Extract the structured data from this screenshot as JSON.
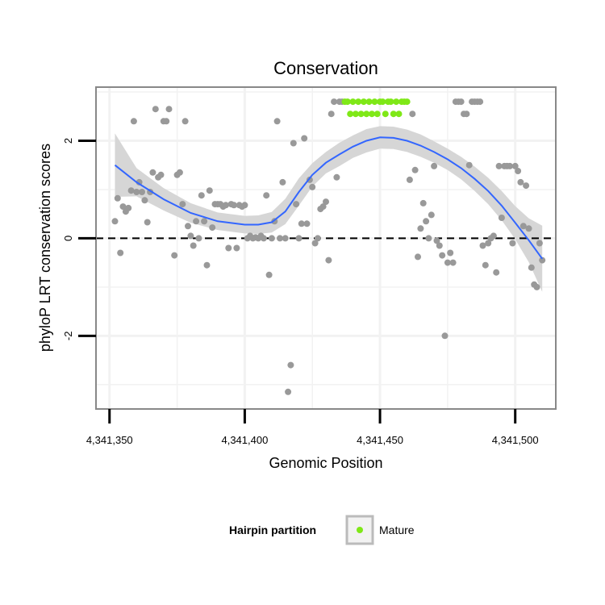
{
  "chart_data": {
    "type": "scatter",
    "title": "Conservation",
    "xlabel": "Genomic Position",
    "ylabel": "phyloP LRT conservation scores",
    "xlim": [
      4341345,
      4341515
    ],
    "ylim": [
      -3.5,
      3.1
    ],
    "x_ticks": [
      4341350,
      4341400,
      4341450,
      4341500
    ],
    "x_tick_labels": [
      "4,341,350",
      "4,341,400",
      "4,341,450",
      "4,341,500"
    ],
    "y_ticks": [
      -2,
      0,
      2
    ],
    "y_tick_labels": [
      "-2",
      "0",
      "2"
    ],
    "reference_line": {
      "y": 0,
      "style": "dashed"
    },
    "grid": true,
    "legend": {
      "title": "Hairpin partition",
      "position": "bottom",
      "entries": [
        {
          "label": "Mature",
          "color": "#7FE817"
        }
      ]
    },
    "colors": {
      "other": "#999999",
      "mature": "#7FE817",
      "smooth_line": "#3366FF",
      "ribbon": "#D6D6D6",
      "panel_border": "#888888",
      "grid": "#F2F2F2"
    },
    "series": [
      {
        "name": "",
        "color": "#999999",
        "points": [
          [
            4341352,
            0.35
          ],
          [
            4341353,
            0.82
          ],
          [
            4341354,
            -0.3
          ],
          [
            4341355,
            0.65
          ],
          [
            4341356,
            0.55
          ],
          [
            4341357,
            0.62
          ],
          [
            4341358,
            0.98
          ],
          [
            4341359,
            2.4
          ],
          [
            4341360,
            0.95
          ],
          [
            4341361,
            1.15
          ],
          [
            4341362,
            0.95
          ],
          [
            4341363,
            0.78
          ],
          [
            4341364,
            0.33
          ],
          [
            4341365,
            0.95
          ],
          [
            4341366,
            1.35
          ],
          [
            4341367,
            2.65
          ],
          [
            4341368,
            1.25
          ],
          [
            4341369,
            1.3
          ],
          [
            4341370,
            2.4
          ],
          [
            4341371,
            2.4
          ],
          [
            4341372,
            2.65
          ],
          [
            4341374,
            -0.35
          ],
          [
            4341375,
            1.3
          ],
          [
            4341376,
            1.35
          ],
          [
            4341377,
            0.7
          ],
          [
            4341378,
            2.4
          ],
          [
            4341379,
            0.25
          ],
          [
            4341380,
            0.05
          ],
          [
            4341381,
            -0.15
          ],
          [
            4341382,
            0.35
          ],
          [
            4341383,
            0.0
          ],
          [
            4341384,
            0.88
          ],
          [
            4341385,
            0.35
          ],
          [
            4341386,
            -0.55
          ],
          [
            4341387,
            0.98
          ],
          [
            4341388,
            0.22
          ],
          [
            4341389,
            0.7
          ],
          [
            4341390,
            0.7
          ],
          [
            4341391,
            0.7
          ],
          [
            4341392,
            0.65
          ],
          [
            4341393,
            0.68
          ],
          [
            4341394,
            -0.2
          ],
          [
            4341395,
            0.7
          ],
          [
            4341396,
            0.68
          ],
          [
            4341397,
            -0.2
          ],
          [
            4341398,
            0.68
          ],
          [
            4341399,
            0.65
          ],
          [
            4341400,
            0.68
          ],
          [
            4341401,
            0.0
          ],
          [
            4341402,
            0.05
          ],
          [
            4341403,
            0.0
          ],
          [
            4341404,
            0.02
          ],
          [
            4341405,
            0.0
          ],
          [
            4341406,
            0.05
          ],
          [
            4341407,
            0.0
          ],
          [
            4341408,
            0.88
          ],
          [
            4341409,
            -0.75
          ],
          [
            4341410,
            0.0
          ],
          [
            4341411,
            0.35
          ],
          [
            4341412,
            2.4
          ],
          [
            4341413,
            0.0
          ],
          [
            4341414,
            1.15
          ],
          [
            4341415,
            0.0
          ],
          [
            4341416,
            -3.15
          ],
          [
            4341417,
            -2.6
          ],
          [
            4341418,
            1.95
          ],
          [
            4341419,
            0.7
          ],
          [
            4341420,
            0.0
          ],
          [
            4341421,
            0.3
          ],
          [
            4341422,
            2.05
          ],
          [
            4341423,
            0.3
          ],
          [
            4341424,
            1.2
          ],
          [
            4341425,
            1.05
          ],
          [
            4341426,
            -0.1
          ],
          [
            4341427,
            0.0
          ],
          [
            4341428,
            0.6
          ],
          [
            4341429,
            0.65
          ],
          [
            4341430,
            0.75
          ],
          [
            4341431,
            -0.45
          ],
          [
            4341432,
            2.55
          ],
          [
            4341433,
            2.8
          ],
          [
            4341434,
            1.25
          ],
          [
            4341435,
            2.8
          ],
          [
            4341436,
            2.8
          ],
          [
            4341461,
            1.2
          ],
          [
            4341462,
            2.55
          ],
          [
            4341463,
            1.4
          ],
          [
            4341464,
            -0.38
          ],
          [
            4341465,
            0.2
          ],
          [
            4341466,
            0.72
          ],
          [
            4341467,
            0.35
          ],
          [
            4341468,
            0.0
          ],
          [
            4341469,
            0.48
          ],
          [
            4341470,
            1.48
          ],
          [
            4341471,
            -0.05
          ],
          [
            4341472,
            -0.15
          ],
          [
            4341473,
            -0.35
          ],
          [
            4341474,
            -2.0
          ],
          [
            4341475,
            -0.5
          ],
          [
            4341476,
            -0.3
          ],
          [
            4341477,
            -0.5
          ],
          [
            4341478,
            2.8
          ],
          [
            4341479,
            2.8
          ],
          [
            4341480,
            2.8
          ],
          [
            4341481,
            2.55
          ],
          [
            4341482,
            2.55
          ],
          [
            4341483,
            1.5
          ],
          [
            4341484,
            2.8
          ],
          [
            4341485,
            2.8
          ],
          [
            4341486,
            2.8
          ],
          [
            4341487,
            2.8
          ],
          [
            4341488,
            -0.15
          ],
          [
            4341489,
            -0.55
          ],
          [
            4341490,
            -0.1
          ],
          [
            4341491,
            0.0
          ],
          [
            4341492,
            0.05
          ],
          [
            4341493,
            -0.7
          ],
          [
            4341494,
            1.48
          ],
          [
            4341495,
            0.42
          ],
          [
            4341496,
            1.48
          ],
          [
            4341497,
            1.48
          ],
          [
            4341498,
            1.48
          ],
          [
            4341499,
            -0.1
          ],
          [
            4341500,
            1.48
          ],
          [
            4341501,
            1.38
          ],
          [
            4341502,
            1.15
          ],
          [
            4341503,
            0.25
          ],
          [
            4341504,
            1.08
          ],
          [
            4341505,
            0.2
          ],
          [
            4341506,
            -0.6
          ],
          [
            4341507,
            -0.95
          ],
          [
            4341508,
            -1.0
          ],
          [
            4341509,
            -0.1
          ],
          [
            4341510,
            -0.45
          ]
        ]
      },
      {
        "name": "Mature",
        "color": "#7FE817",
        "points": [
          [
            4341437,
            2.8
          ],
          [
            4341438,
            2.8
          ],
          [
            4341439,
            2.55
          ],
          [
            4341440,
            2.8
          ],
          [
            4341441,
            2.55
          ],
          [
            4341442,
            2.8
          ],
          [
            4341443,
            2.55
          ],
          [
            4341444,
            2.8
          ],
          [
            4341445,
            2.55
          ],
          [
            4341446,
            2.8
          ],
          [
            4341447,
            2.55
          ],
          [
            4341448,
            2.8
          ],
          [
            4341449,
            2.55
          ],
          [
            4341450,
            2.8
          ],
          [
            4341451,
            2.8
          ],
          [
            4341452,
            2.55
          ],
          [
            4341453,
            2.8
          ],
          [
            4341454,
            2.8
          ],
          [
            4341455,
            2.55
          ],
          [
            4341456,
            2.8
          ],
          [
            4341457,
            2.55
          ],
          [
            4341458,
            2.8
          ],
          [
            4341459,
            2.8
          ],
          [
            4341460,
            2.8
          ]
        ]
      }
    ],
    "smooth": {
      "x": [
        4341352,
        4341360,
        4341370,
        4341380,
        4341390,
        4341400,
        4341405,
        4341410,
        4341415,
        4341420,
        4341425,
        4341430,
        4341435,
        4341440,
        4341445,
        4341450,
        4341455,
        4341460,
        4341465,
        4341470,
        4341475,
        4341480,
        4341485,
        4341490,
        4341495,
        4341500,
        4341505,
        4341510
      ],
      "y": [
        1.5,
        1.15,
        0.8,
        0.52,
        0.35,
        0.28,
        0.28,
        0.33,
        0.55,
        0.95,
        1.3,
        1.55,
        1.72,
        1.88,
        2.0,
        2.07,
        2.06,
        2.0,
        1.9,
        1.77,
        1.62,
        1.44,
        1.22,
        0.97,
        0.67,
        0.32,
        -0.04,
        -0.42
      ],
      "lower": [
        0.85,
        0.86,
        0.57,
        0.32,
        0.17,
        0.1,
        0.09,
        0.12,
        0.29,
        0.67,
        1.06,
        1.33,
        1.48,
        1.65,
        1.76,
        1.84,
        1.83,
        1.77,
        1.67,
        1.55,
        1.4,
        1.21,
        0.97,
        0.7,
        0.37,
        -0.02,
        -0.49,
        -1.1
      ],
      "upper": [
        2.15,
        1.44,
        1.03,
        0.72,
        0.53,
        0.46,
        0.47,
        0.54,
        0.81,
        1.23,
        1.54,
        1.77,
        1.96,
        2.11,
        2.24,
        2.3,
        2.29,
        2.23,
        2.13,
        1.99,
        1.84,
        1.67,
        1.47,
        1.24,
        0.97,
        0.66,
        0.41,
        0.26
      ]
    }
  }
}
